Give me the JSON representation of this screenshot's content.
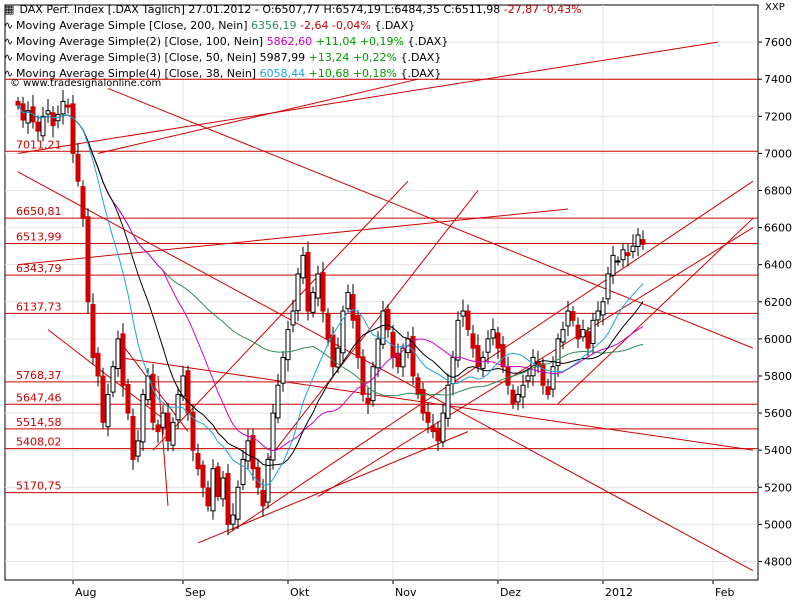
{
  "header": {
    "main": {
      "name": "DAX Perf. Index [.DAX Täglich] 27.01.2012",
      "ohlc_o": "O:6507,77",
      "ohlc_h": "H:6574,19",
      "ohlc_l": "L:6484,35",
      "ohlc_c": "C:6511,98",
      "change": "-27,87 -0,43%"
    },
    "ma": [
      {
        "name": "Moving Average Simple [Close, 200, Nein]",
        "value": "6356,19",
        "change": "-2,64 -0,04%",
        "suffix": "{.DAX}",
        "color": "#2e8b57",
        "chcolor": "#cc0000"
      },
      {
        "name": "Moving Average Simple(2) [Close, 100, Nein]",
        "value": "5862,60",
        "change": "+11,04 +0,19%",
        "suffix": "{.DAX}",
        "color": "#cc00cc",
        "chcolor": "#009900"
      },
      {
        "name": "Moving Average Simple(3) [Close, 50, Nein]",
        "value": "5987,99",
        "change": "+13,24 +0,22%",
        "suffix": "{.DAX}",
        "color": "#000000",
        "chcolor": "#009900"
      },
      {
        "name": "Moving Average Simple(4) [Close, 38, Nein]",
        "value": "6058,44",
        "change": "+10,68 +0,18%",
        "suffix": "{.DAX}",
        "color": "#1aa5e0",
        "chcolor": "#009900"
      }
    ],
    "watermark": "© www.tradesignalonline.com",
    "yunit": "XXP"
  },
  "colors": {
    "bull": "#000000",
    "bear": "#d00000",
    "support": "#cc0000",
    "ma200": "#2e8b57",
    "ma100": "#cc00cc",
    "ma50": "#000000",
    "ma38": "#1aa5e0"
  },
  "chart_data": {
    "type": "candlestick",
    "ylim": [
      4700,
      7800
    ],
    "yticks": [
      4800,
      5000,
      5200,
      5400,
      5600,
      5800,
      6000,
      6200,
      6400,
      6600,
      6800,
      7000,
      7200,
      7400,
      7600
    ],
    "xlabels": [
      {
        "label": "Aug",
        "i": 11
      },
      {
        "label": "Sep",
        "i": 33
      },
      {
        "label": "Okt",
        "i": 54
      },
      {
        "label": "Nov",
        "i": 75
      },
      {
        "label": "Dez",
        "i": 96
      },
      {
        "label": "2012",
        "i": 117
      },
      {
        "label": "Feb",
        "i": 139
      }
    ],
    "nbars": 147,
    "levels": [
      {
        "label": "7011,21",
        "value": 7011.21
      },
      {
        "label": "6650,81",
        "value": 6650.81
      },
      {
        "label": "6513,99",
        "value": 6513.99
      },
      {
        "label": "6343,79",
        "value": 6343.79
      },
      {
        "label": "6137,73",
        "value": 6137.73
      },
      {
        "label": "5768,37",
        "value": 5768.37
      },
      {
        "label": "5647,46",
        "value": 5647.46
      },
      {
        "label": "5514,58",
        "value": 5514.58
      },
      {
        "label": "5408,02",
        "value": 5408.02
      },
      {
        "label": "5170,75",
        "value": 5170.75
      }
    ],
    "level_extra": [
      7400
    ],
    "closes": [
      7260,
      7180,
      7230,
      7170,
      7120,
      7200,
      7230,
      7150,
      7210,
      7280,
      7250,
      7000,
      6850,
      6650,
      6200,
      5900,
      5800,
      5550,
      5700,
      5850,
      6000,
      5750,
      5600,
      5350,
      5450,
      5700,
      5800,
      5550,
      5500,
      5600,
      5450,
      5550,
      5700,
      5800,
      5600,
      5400,
      5300,
      5200,
      5100,
      5300,
      5150,
      5250,
      5000,
      5050,
      5200,
      5350,
      5450,
      5300,
      5200,
      5100,
      5350,
      5600,
      5750,
      5900,
      6050,
      6150,
      6350,
      6450,
      6150,
      6250,
      6350,
      6150,
      6000,
      5850,
      5950,
      6150,
      6250,
      6100,
      5900,
      5700,
      5650,
      5850,
      6000,
      6150,
      6050,
      5900,
      5850,
      5950,
      6000,
      5800,
      5700,
      5600,
      5550,
      5500,
      5450,
      5600,
      5750,
      5900,
      6100,
      6150,
      6050,
      5950,
      5850,
      5900,
      6000,
      6050,
      5950,
      5850,
      5750,
      5650,
      5700,
      5750,
      5800,
      5900,
      5850,
      5750,
      5700,
      5850,
      6000,
      6050,
      6150,
      6100,
      6000,
      6050,
      5950,
      6100,
      6150,
      6200,
      6350,
      6450,
      6420,
      6480,
      6450,
      6500,
      6560,
      6510
    ]
  }
}
